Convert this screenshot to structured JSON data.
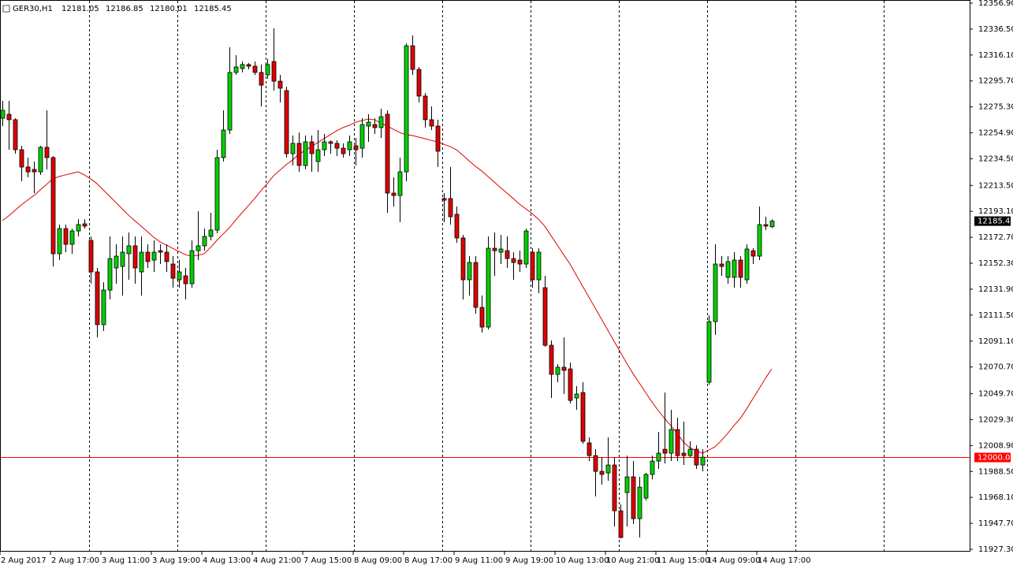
{
  "chart_data": {
    "type": "candlestick",
    "title": "GER30,H1",
    "categories": [
      "2 Aug 2017",
      null,
      null,
      null,
      null,
      null,
      null,
      null,
      "2 Aug 17:00",
      null,
      null,
      null,
      null,
      null,
      null,
      null,
      "3 Aug 11:00",
      null,
      null,
      null,
      null,
      null,
      null,
      null,
      "3 Aug 19:00",
      null,
      null,
      null,
      null,
      null,
      null,
      null,
      "4 Aug 13:00",
      null,
      null,
      null,
      null,
      null,
      null,
      null,
      "4 Aug 21:00",
      null,
      null,
      null,
      null,
      null,
      null,
      null,
      "7 Aug 15:00",
      null,
      null,
      null,
      null,
      null,
      null,
      null,
      "8 Aug 09:00",
      null,
      null,
      null,
      null,
      null,
      null,
      null,
      "8 Aug 17:00",
      null,
      null,
      null,
      null,
      null,
      null,
      null,
      "9 Aug 11:00",
      null,
      null,
      null,
      null,
      null,
      null,
      null,
      "9 Aug 19:00",
      null,
      null,
      null,
      null,
      null,
      null,
      null,
      "10 Aug 13:00",
      null,
      null,
      null,
      null,
      null,
      null,
      null,
      "10 Aug 21:00",
      null,
      null,
      null,
      null,
      null,
      null,
      null,
      "11 Aug 15:00",
      null,
      null,
      null,
      null,
      null,
      null,
      null,
      "14 Aug 09:00",
      null,
      null,
      null,
      null,
      null,
      null,
      null,
      "14 Aug 17:00",
      null,
      null
    ],
    "open": [
      12266.4,
      12269.5,
      12265.2,
      12241.6,
      12228.0,
      12226.1,
      12224.2,
      12243.5,
      12235.4,
      12159.8,
      12179.6,
      12167.2,
      12177.7,
      12183.3,
      12170.3,
      12145.5,
      12104.0,
      12131.2,
      12148.6,
      12149.8,
      12159.8,
      12166.0,
      12145.5,
      12161.0,
      12154.8,
      12162.2,
      12161.0,
      12151.7,
      12139.3,
      12142.4,
      12136.2,
      12162.2,
      12166.0,
      12173.4,
      12178.4,
      12235.4,
      12257.1,
      12302.4,
      12305.5,
      12308.6,
      12307.3,
      12302.4,
      12300.5,
      12311.0,
      12295.5,
      12288.1,
      12238.5,
      12246.6,
      12229.2,
      12247.8,
      12232.3,
      12241.6,
      12247.8,
      12246.6,
      12242.8,
      12241.6,
      12244.7,
      12242.8,
      12260.2,
      12261.4,
      12259.0,
      12269.5,
      12207.5,
      12205.6,
      12224.2,
      12323.4,
      12304.8,
      12283.8,
      12265.2,
      12260.2,
      12203.2,
      12203.2,
      12190.8,
      12172.2,
      12139.3,
      12152.9,
      12117.6,
      12102.1,
      12164.1,
      12161.0,
      12162.2,
      12156.0,
      12154.8,
      12151.7,
      12161.0,
      12139.3,
      12133.1,
      12087.8,
      12064.9,
      12070.5,
      12069.2,
      12046.3,
      12050.6,
      12011.0,
      12001.0,
      11988.6,
      11987.4,
      11993.6,
      11957.6,
      11971.9,
      11984.3,
      11951.4,
      11967.6,
      11986.2,
      11996.7,
      12006.0,
      12002.9,
      12021.5,
      12002.9,
      12001.0,
      12006.0,
      11993.6,
      12058.7,
      12106.4,
      12151.7,
      12141.2,
      12141.2,
      12154.8,
      12139.3,
      12162.2,
      12157.9,
      12182.7,
      12181.05
    ],
    "high": [
      12280.0,
      12280.0,
      12266.4,
      12244.7,
      12235.4,
      12232.3,
      12244.7,
      12272.6,
      12236.6,
      12182.7,
      12182.7,
      12179.6,
      12187.0,
      12187.0,
      12173.4,
      12148.6,
      12137.4,
      12173.4,
      12167.2,
      12173.4,
      12176.5,
      12173.4,
      12173.4,
      12167.2,
      12170.3,
      12167.2,
      12167.2,
      12157.9,
      12154.8,
      12148.6,
      12170.3,
      12193.2,
      12179.6,
      12192.0,
      12241.6,
      12272.6,
      12322.2,
      12316.0,
      12311.0,
      12309.8,
      12311.0,
      12308.6,
      12312.9,
      12337.1,
      12300.5,
      12291.2,
      12252.8,
      12255.2,
      12252.8,
      12252.8,
      12257.1,
      12254.0,
      12249.0,
      12249.0,
      12246.6,
      12252.8,
      12250.9,
      12266.4,
      12269.5,
      12266.4,
      12273.8,
      12272.6,
      12219.9,
      12235.4,
      12325.3,
      12331.5,
      12306.7,
      12286.2,
      12275.7,
      12265.2,
      12207.5,
      12228.0,
      12197.0,
      12174.6,
      12157.9,
      12157.9,
      12126.9,
      12173.4,
      12176.5,
      12174.6,
      12173.4,
      12161.0,
      12162.2,
      12179.6,
      12164.1,
      12164.1,
      12142.4,
      12091.6,
      12073.0,
      12094.0,
      12074.2,
      12055.6,
      12058.7,
      12015.3,
      12006.0,
      11999.8,
      12015.3,
      11999.8,
      11962.6,
      12001.0,
      11996.7,
      11984.3,
      11987.4,
      12001.0,
      12019.6,
      12050.6,
      12037.0,
      12030.8,
      12027.7,
      12012.2,
      12009.1,
      12006.0,
      12111.4,
      12167.2,
      12157.9,
      12157.9,
      12161.0,
      12157.9,
      12167.2,
      12164.1,
      12197.0,
      12188.9,
      12186.85
    ],
    "low": [
      12260.2,
      12241.6,
      12238.5,
      12216.8,
      12219.9,
      12207.5,
      12221.8,
      12226.1,
      12149.8,
      12154.8,
      12161.0,
      12159.8,
      12173.4,
      12179.6,
      12136.2,
      12094.0,
      12099.0,
      12123.8,
      12136.2,
      12126.9,
      12139.3,
      12136.2,
      12126.9,
      12148.6,
      12145.5,
      12151.7,
      12145.5,
      12133.1,
      12133.1,
      12123.8,
      12133.1,
      12154.8,
      12162.2,
      12170.3,
      12175.9,
      12232.3,
      12254.0,
      12300.5,
      12302.4,
      12304.8,
      12300.5,
      12275.7,
      12297.4,
      12288.1,
      12278.8,
      12235.4,
      12229.2,
      12224.2,
      12226.1,
      12224.2,
      12224.2,
      12236.6,
      12238.5,
      12236.6,
      12235.4,
      12236.6,
      12229.2,
      12235.4,
      12247.8,
      12254.0,
      12250.9,
      12192.0,
      12197.0,
      12184.6,
      12216.8,
      12300.5,
      12278.8,
      12259.0,
      12257.1,
      12228.0,
      12184.6,
      12182.7,
      12168.4,
      12123.8,
      12126.9,
      12112.6,
      12097.8,
      12100.2,
      12142.4,
      12151.7,
      12148.6,
      12139.3,
      12145.5,
      12148.6,
      12133.1,
      12128.8,
      12086.6,
      12046.3,
      12058.7,
      12049.4,
      12042.0,
      12037.0,
      12010.3,
      11996.7,
      11968.8,
      11978.1,
      11981.2,
      11945.2,
      11935.9,
      11945.2,
      11947.1,
      11936.6,
      11965.7,
      11982.4,
      11990.5,
      11994.8,
      11996.7,
      11996.7,
      11993.6,
      11999.8,
      11990.5,
      11988.6,
      12056.8,
      12095.9,
      12142.4,
      12136.2,
      12133.1,
      12133.1,
      12136.2,
      12151.7,
      12154.8,
      12178.4,
      12180.01
    ],
    "close": [
      12272.6,
      12265.2,
      12241.6,
      12228.0,
      12224.2,
      12224.2,
      12243.5,
      12235.4,
      12159.8,
      12179.6,
      12167.2,
      12177.7,
      12182.7,
      12181.5,
      12145.5,
      12104.0,
      12131.2,
      12156.0,
      12157.9,
      12161.0,
      12166.0,
      12148.6,
      12161.0,
      12153.6,
      12161.0,
      12161.0,
      12153.6,
      12140.5,
      12145.5,
      12136.2,
      12162.2,
      12166.0,
      12173.4,
      12178.4,
      12235.4,
      12257.1,
      12302.4,
      12306.7,
      12308.6,
      12307.3,
      12302.4,
      12292.4,
      12308.6,
      12295.5,
      12290.0,
      12238.5,
      12246.6,
      12229.2,
      12247.8,
      12238.5,
      12241.6,
      12247.8,
      12246.6,
      12242.8,
      12238.5,
      12247.8,
      12241.6,
      12261.4,
      12263.3,
      12259.0,
      12267.6,
      12207.5,
      12205.6,
      12224.2,
      12323.4,
      12304.8,
      12283.8,
      12265.2,
      12260.2,
      12240.4,
      12201.9,
      12188.9,
      12172.2,
      12139.3,
      12152.9,
      12117.6,
      12102.1,
      12164.1,
      12162.2,
      12163.5,
      12156.0,
      12152.9,
      12151.7,
      12177.7,
      12139.3,
      12161.0,
      12087.8,
      12064.9,
      12070.5,
      12068.0,
      12044.4,
      12049.4,
      12012.2,
      12001.0,
      11988.6,
      11986.2,
      11993.6,
      11957.6,
      11936.6,
      11984.3,
      11951.4,
      11976.2,
      11986.2,
      11996.7,
      12002.9,
      12002.9,
      12021.5,
      12001.0,
      12001.0,
      12006.0,
      11993.6,
      11999.8,
      12106.4,
      12151.7,
      12149.8,
      12153.6,
      12154.8,
      12141.2,
      12163.5,
      12157.9,
      12182.7,
      12181.5,
      12185.45
    ],
    "up_color": "#00d000",
    "down_color": "#e00000",
    "moving_average": {
      "color": "#e00000",
      "values": [
        12185.8,
        12189.5,
        12193.9,
        12198.2,
        12201.9,
        12205.6,
        12210.0,
        12214.3,
        12218.7,
        12220.5,
        12221.8,
        12223.0,
        12224.2,
        12221.8,
        12218.7,
        12214.9,
        12210.0,
        12205.0,
        12200.1,
        12195.1,
        12190.1,
        12185.8,
        12181.5,
        12177.1,
        12172.8,
        12169.1,
        12166.6,
        12164.1,
        12161.6,
        12159.1,
        12157.9,
        12158.5,
        12159.8,
        12164.7,
        12170.3,
        12175.3,
        12180.2,
        12186.4,
        12192.0,
        12197.6,
        12203.2,
        12209.4,
        12214.9,
        12221.1,
        12225.5,
        12229.8,
        12233.5,
        12237.9,
        12241.0,
        12244.1,
        12247.2,
        12250.3,
        12253.4,
        12256.5,
        12259.0,
        12260.8,
        12263.3,
        12264.5,
        12265.8,
        12265.2,
        12262.7,
        12260.2,
        12257.7,
        12255.2,
        12253.4,
        12252.8,
        12251.5,
        12250.3,
        12249.0,
        12247.8,
        12245.9,
        12244.1,
        12241.6,
        12237.3,
        12232.9,
        12228.6,
        12224.9,
        12220.5,
        12216.2,
        12211.8,
        12207.5,
        12203.2,
        12198.8,
        12195.1,
        12191.4,
        12187.0,
        12181.5,
        12174.0,
        12166.6,
        12159.1,
        12151.7,
        12143.0,
        12134.3,
        12125.7,
        12117.0,
        12108.3,
        12099.6,
        12090.9,
        12082.3,
        12073.6,
        12065.5,
        12058.1,
        12050.6,
        12043.2,
        12036.4,
        12030.2,
        12024.6,
        12018.4,
        12011.6,
        12007.2,
        12004.8,
        12002.9,
        12005.4,
        12007.9,
        12012.8,
        12018.4,
        12024.6,
        12030.2,
        12037.6,
        12045.7,
        12053.7,
        12061.8,
        12069.2
      ]
    },
    "levels": [
      {
        "value": 12000,
        "label": "12000.00",
        "color": "#ff0000"
      }
    ],
    "ylim": [
      11927.3,
      12356.9
    ],
    "yticks": [
      {
        "value": 12356.9,
        "label": "12356.90"
      },
      {
        "value": 12336.5,
        "label": "12336.50"
      },
      {
        "value": 12316.1,
        "label": "12316.10"
      },
      {
        "value": 12295.7,
        "label": "12295.70"
      },
      {
        "value": 12275.3,
        "label": "12275.30"
      },
      {
        "value": 12254.9,
        "label": "12254.90"
      },
      {
        "value": 12234.5,
        "label": "12234.50"
      },
      {
        "value": 12213.5,
        "label": "12213.50"
      },
      {
        "value": 12193.1,
        "label": "12193.10"
      },
      {
        "value": 12172.7,
        "label": "12172.70"
      },
      {
        "value": 12152.3,
        "label": "12152.30"
      },
      {
        "value": 12131.9,
        "label": "12131.90"
      },
      {
        "value": 12111.5,
        "label": "12111.50"
      },
      {
        "value": 12091.1,
        "label": "12091.10"
      },
      {
        "value": 12070.7,
        "label": "12070.70"
      },
      {
        "value": 12049.7,
        "label": "12049.70"
      },
      {
        "value": 12029.3,
        "label": "12029.30"
      },
      {
        "value": 12008.9,
        "label": "12008.90"
      },
      {
        "value": 11988.5,
        "label": "11988.50"
      },
      {
        "value": 11968.1,
        "label": "11968.10"
      },
      {
        "value": 11947.7,
        "label": "11947.70"
      },
      {
        "value": 11927.3,
        "label": "11927.30"
      }
    ],
    "grid": false
  }
}
